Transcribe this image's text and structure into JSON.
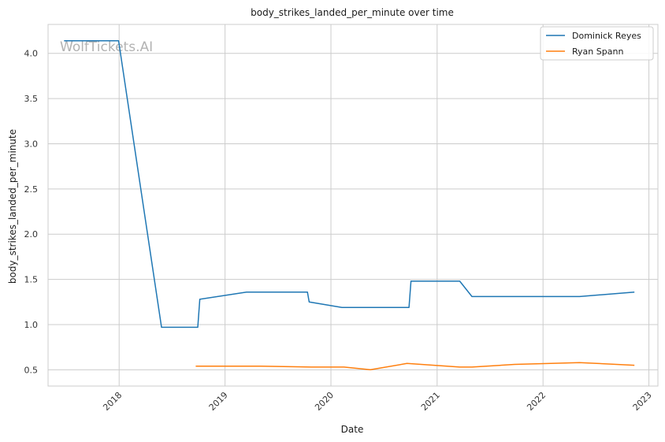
{
  "chart_data": {
    "type": "line",
    "title": "body_strikes_landed_per_minute over time",
    "xlabel": "Date",
    "ylabel": "body_strikes_landed_per_minute",
    "watermark": "WolfTickets.AI",
    "xlim": [
      "2017-05-01",
      "2023-02-01"
    ],
    "ylim": [
      0.32,
      4.32
    ],
    "x_ticks": [
      {
        "date": "2018-01-01",
        "label": "2018"
      },
      {
        "date": "2019-01-01",
        "label": "2019"
      },
      {
        "date": "2020-01-01",
        "label": "2020"
      },
      {
        "date": "2021-01-01",
        "label": "2021"
      },
      {
        "date": "2022-01-01",
        "label": "2022"
      },
      {
        "date": "2023-01-01",
        "label": "2023"
      }
    ],
    "y_ticks": [
      {
        "value": 0.5,
        "label": "0.5"
      },
      {
        "value": 1.0,
        "label": "1.0"
      },
      {
        "value": 1.5,
        "label": "1.5"
      },
      {
        "value": 2.0,
        "label": "2.0"
      },
      {
        "value": 2.5,
        "label": "2.5"
      },
      {
        "value": 3.0,
        "label": "3.0"
      },
      {
        "value": 3.5,
        "label": "3.5"
      },
      {
        "value": 4.0,
        "label": "4.0"
      }
    ],
    "grid": true,
    "legend_position": "top-right",
    "series": [
      {
        "name": "Dominick Reyes",
        "color": "#1f77b4",
        "points": [
          [
            "2017-06-25",
            4.14
          ],
          [
            "2017-12-30",
            4.14
          ],
          [
            "2018-05-27",
            0.97
          ],
          [
            "2018-09-29",
            0.97
          ],
          [
            "2018-10-06",
            1.28
          ],
          [
            "2019-03-16",
            1.36
          ],
          [
            "2019-10-12",
            1.36
          ],
          [
            "2019-10-18",
            1.25
          ],
          [
            "2020-02-08",
            1.19
          ],
          [
            "2020-09-26",
            1.19
          ],
          [
            "2020-10-03",
            1.48
          ],
          [
            "2021-03-20",
            1.48
          ],
          [
            "2021-05-01",
            1.31
          ],
          [
            "2022-05-07",
            1.31
          ],
          [
            "2022-11-12",
            1.36
          ]
        ]
      },
      {
        "name": "Ryan Spann",
        "color": "#ff7f0e",
        "points": [
          [
            "2018-09-22",
            0.54
          ],
          [
            "2019-05-04",
            0.54
          ],
          [
            "2019-10-26",
            0.53
          ],
          [
            "2020-02-15",
            0.53
          ],
          [
            "2020-05-16",
            0.5
          ],
          [
            "2020-09-19",
            0.57
          ],
          [
            "2021-03-20",
            0.53
          ],
          [
            "2021-05-01",
            0.53
          ],
          [
            "2021-09-25",
            0.56
          ],
          [
            "2022-05-07",
            0.58
          ],
          [
            "2022-11-12",
            0.55
          ]
        ]
      }
    ]
  }
}
